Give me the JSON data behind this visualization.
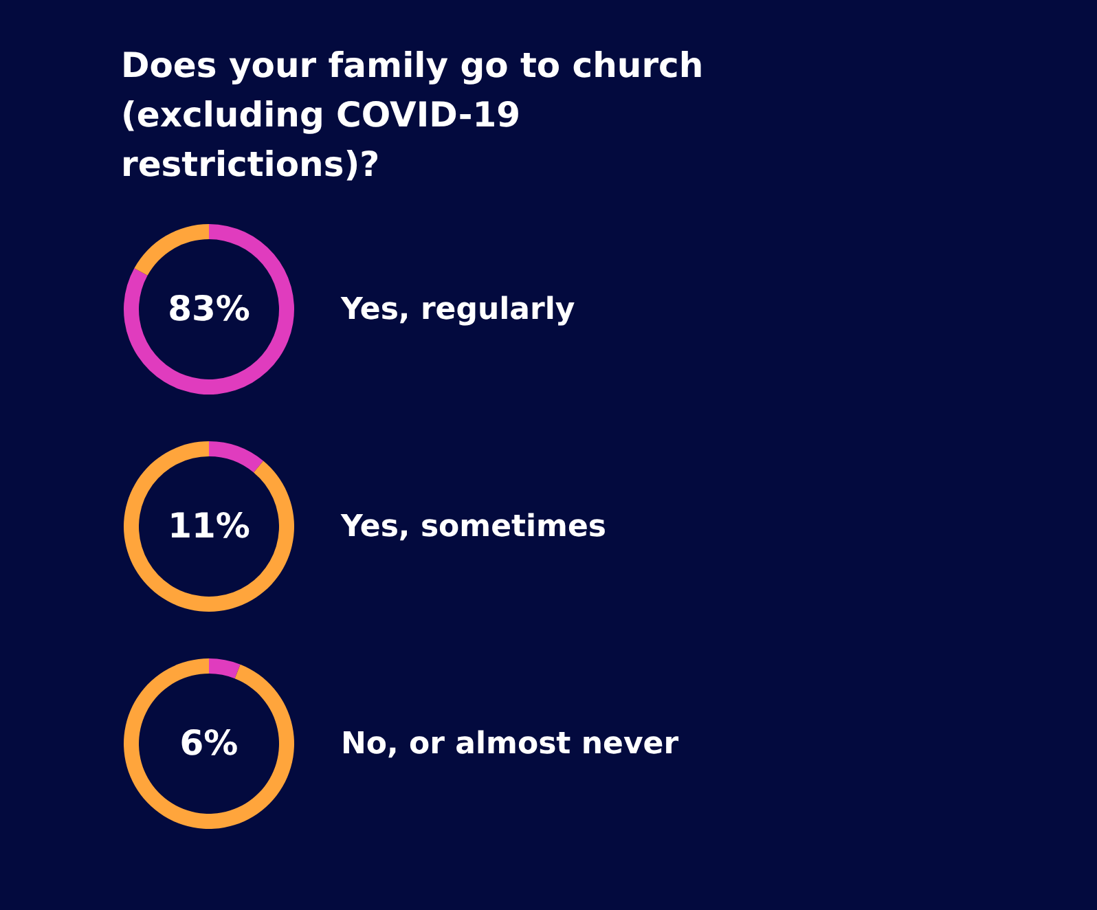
{
  "chart_data": [
    {
      "type": "donut",
      "title": "Does your family go to church (excluding COVID-19 restrictions)?",
      "subtitle": "Yes, regularly",
      "categories": [
        null,
        null
      ],
      "values": [
        83,
        17
      ],
      "colors": [
        "#e03cbe",
        "#ffa53c"
      ],
      "value_labels": [
        "83%",
        null
      ]
    },
    {
      "type": "donut",
      "subtitle": "Yes, sometimes",
      "categories": [
        null,
        null
      ],
      "values": [
        11,
        89
      ],
      "colors": [
        "#e03cbe",
        "#ffa53c"
      ],
      "value_labels": [
        "11%",
        null
      ]
    },
    {
      "type": "donut",
      "subtitle": "No, or almost never",
      "categories": [
        null,
        null
      ],
      "values": [
        6,
        94
      ],
      "colors": [
        "#e03cbe",
        "#ffa53c"
      ],
      "value_labels": [
        "6%",
        null
      ]
    }
  ]
}
